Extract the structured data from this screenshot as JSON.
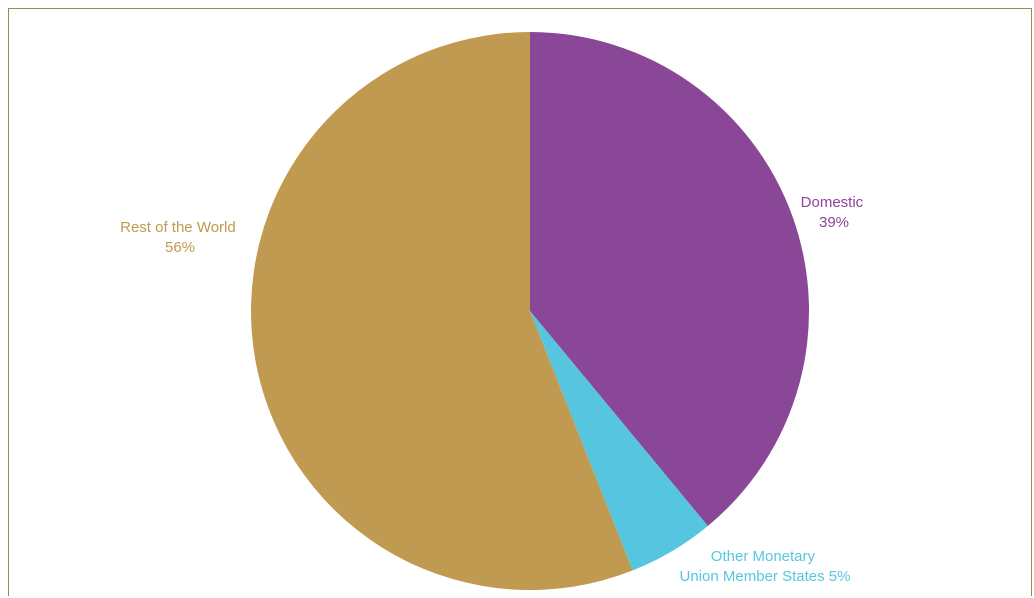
{
  "chart_data": {
    "type": "pie",
    "title": "",
    "start_angle_deg": 0,
    "direction": "clockwise",
    "slices": [
      {
        "label": "Domestic",
        "value": 39,
        "value_text": "39%",
        "color": "#8a4697"
      },
      {
        "label": "Other Monetary Union Member States",
        "value": 5,
        "value_text": "5%",
        "color": "#56c6e0"
      },
      {
        "label": "Rest of the World",
        "value": 56,
        "value_text": "56%",
        "color": "#c09a50"
      }
    ],
    "legend": "none",
    "grid": false
  },
  "colors": {
    "frame_border": "#9a8a50",
    "background": "#ffffff"
  }
}
